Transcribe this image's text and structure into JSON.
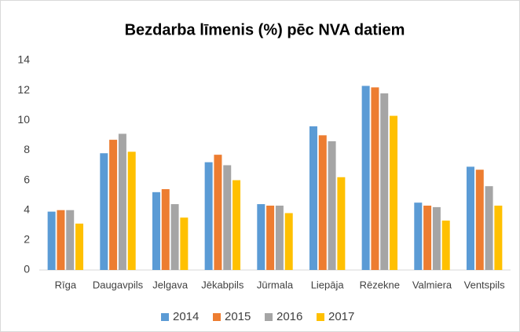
{
  "chart_data": {
    "type": "bar",
    "title": "Bezdarba līmenis (%) pēc NVA datiem",
    "categories": [
      "Rīga",
      "Daugavpils",
      "Jelgava",
      "Jēkabpils",
      "Jūrmala",
      "Liepāja",
      "Rēzekne",
      "Valmiera",
      "Ventspils"
    ],
    "series": [
      {
        "name": "2014",
        "color": "#5b9bd5",
        "values": [
          3.9,
          7.8,
          5.2,
          7.2,
          4.4,
          9.6,
          12.3,
          4.5,
          6.9
        ]
      },
      {
        "name": "2015",
        "color": "#ed7d31",
        "values": [
          4.0,
          8.7,
          5.4,
          7.7,
          4.3,
          9.0,
          12.2,
          4.3,
          6.7
        ]
      },
      {
        "name": "2016",
        "color": "#a5a5a5",
        "values": [
          4.0,
          9.1,
          4.4,
          7.0,
          4.3,
          8.6,
          11.8,
          4.2,
          5.6
        ]
      },
      {
        "name": "2017",
        "color": "#ffc000",
        "values": [
          3.1,
          7.9,
          3.5,
          6.0,
          3.8,
          6.2,
          10.3,
          3.3,
          4.3
        ]
      }
    ],
    "ylim": [
      0,
      14
    ],
    "yticks": [
      0,
      2,
      4,
      6,
      8,
      10,
      12,
      14
    ],
    "grid": false,
    "legend": "bottom"
  }
}
